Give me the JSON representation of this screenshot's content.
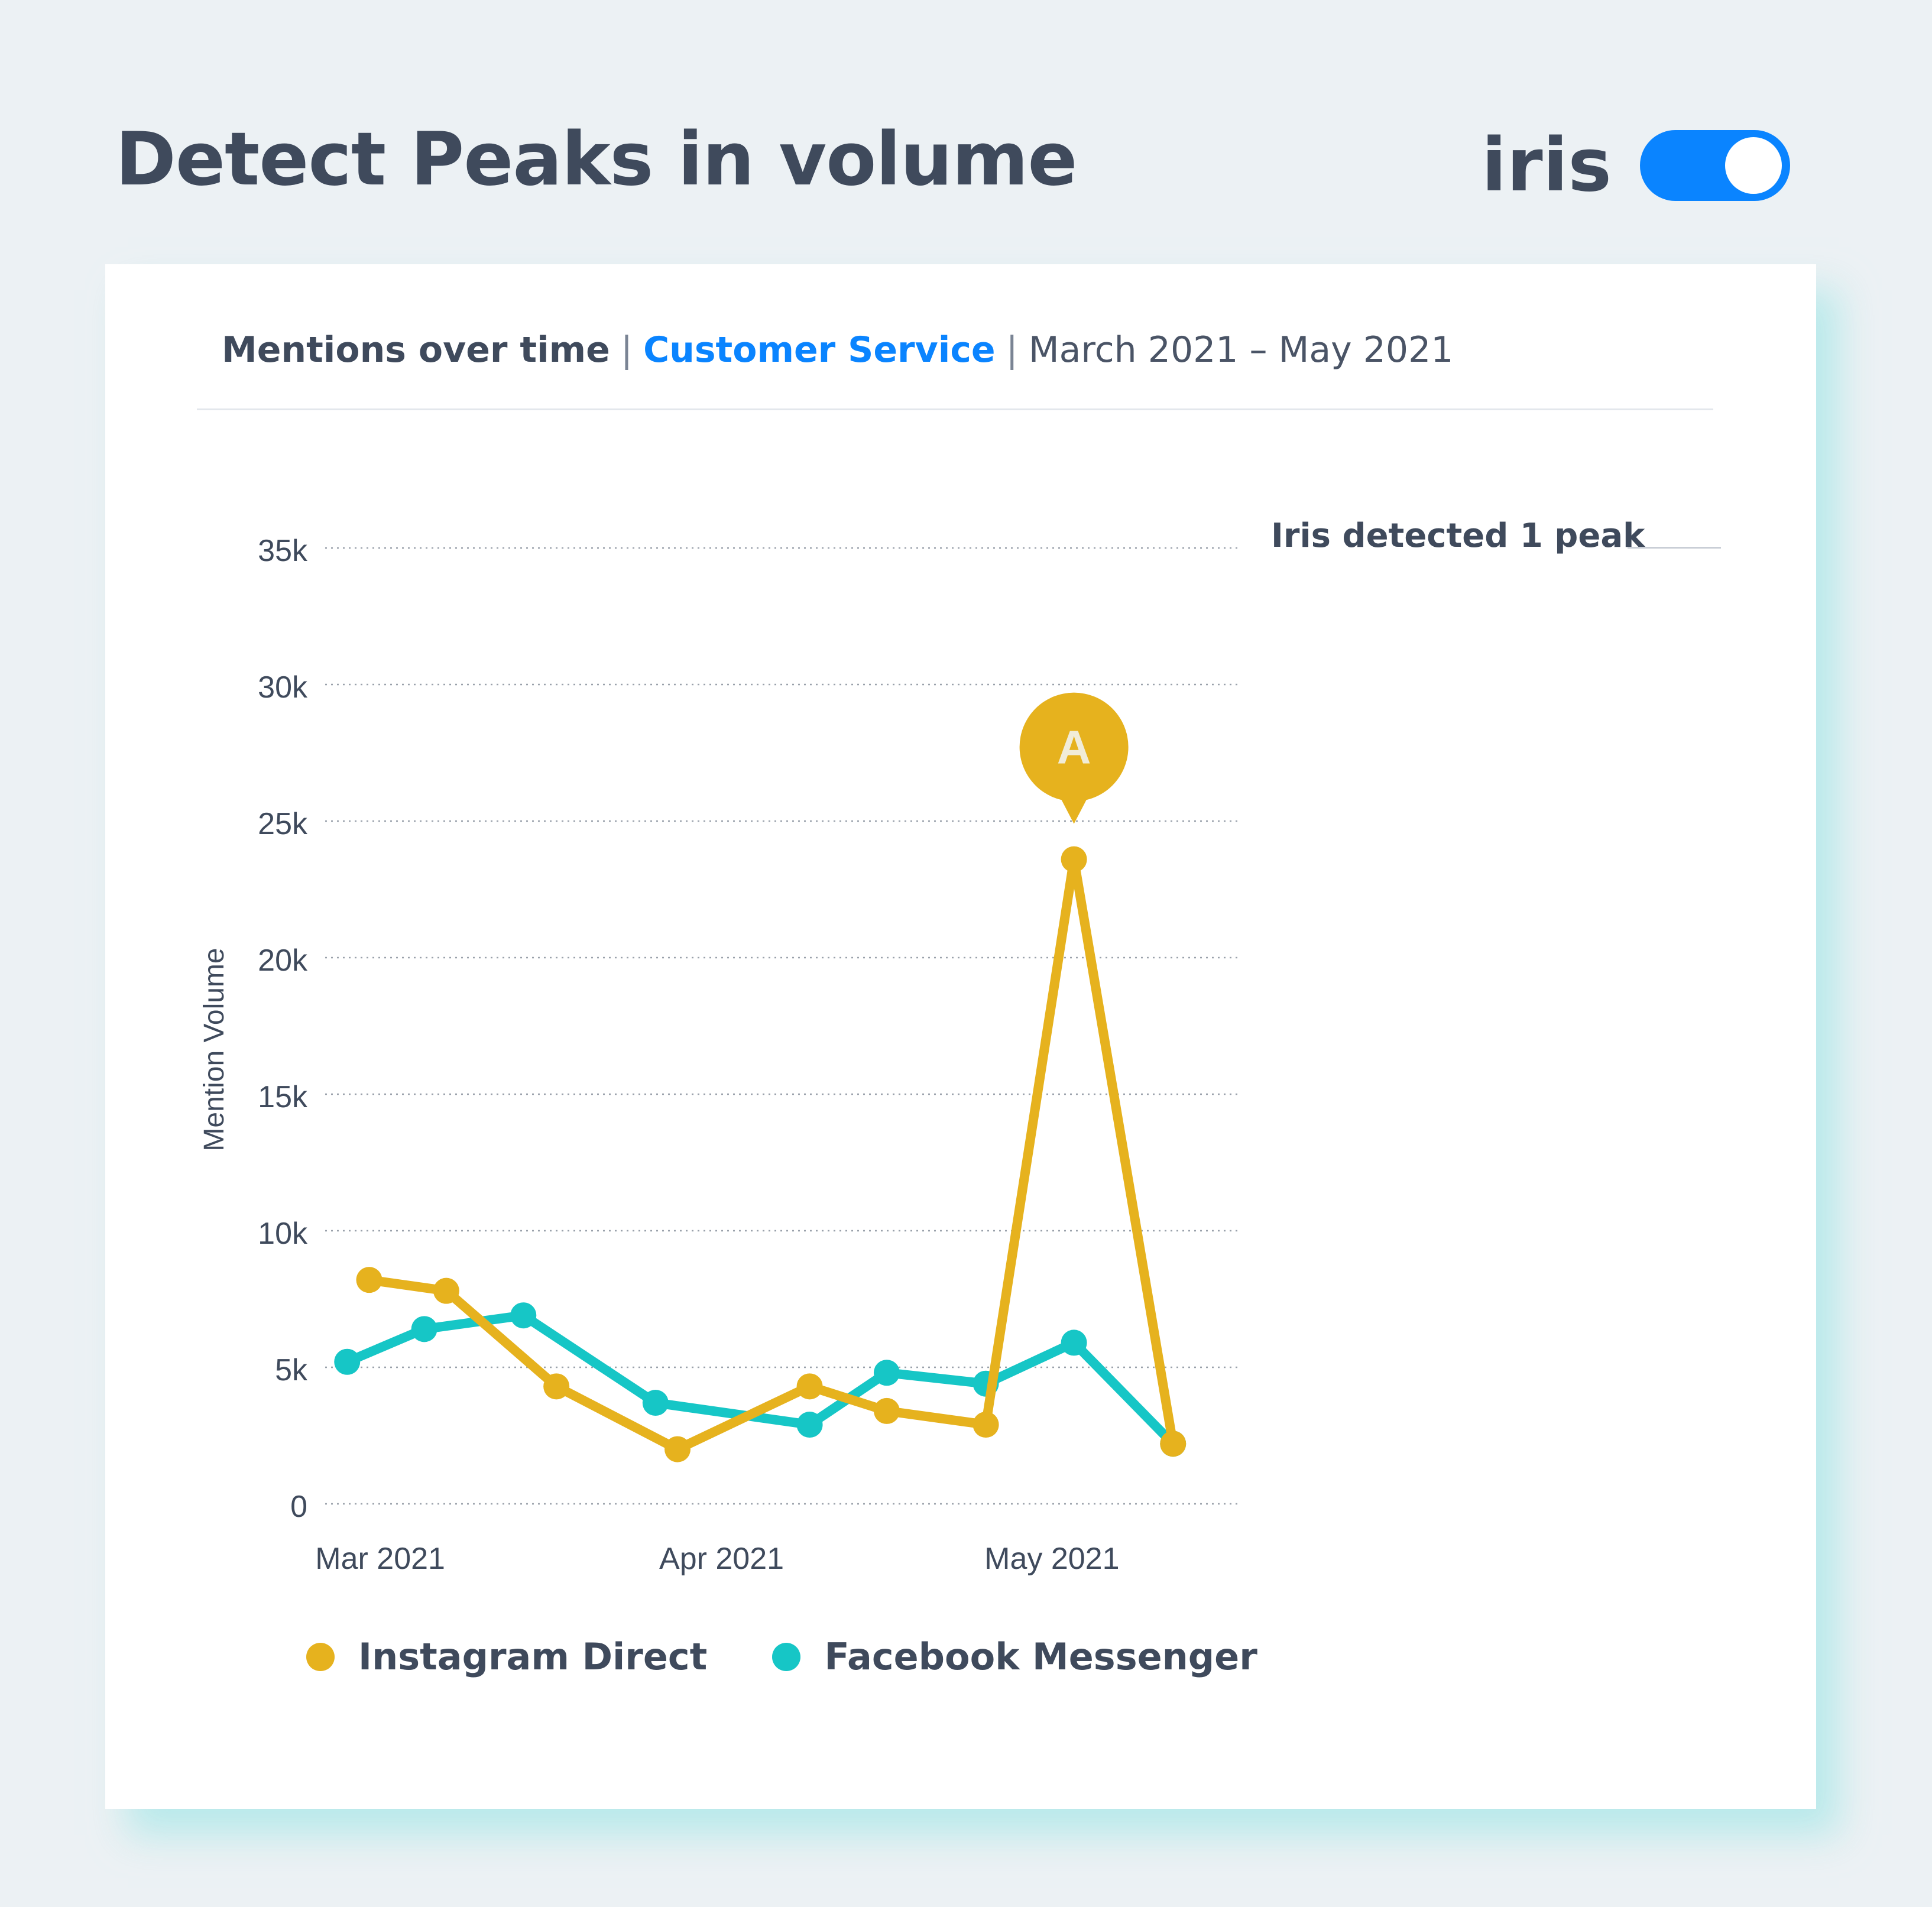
{
  "header": {
    "title": "Detect Peaks in volume",
    "brand": "iris",
    "toggle_on": true
  },
  "card": {
    "metric": "Mentions over time",
    "separator": "|",
    "topic": "Customer Service",
    "date_range": "March 2021 – May 2021",
    "peak_note": "Iris detected 1 peak"
  },
  "colors": {
    "background": "#ecf1f4",
    "accent": "#0a84ff",
    "instagram": "#e6b21e",
    "facebook": "#16c6c6",
    "text": "#3f4a5c"
  },
  "chart_data": {
    "type": "line",
    "ylabel": "Mention Volume",
    "ylim": [
      0,
      35000
    ],
    "yticks": [
      0,
      5000,
      10000,
      15000,
      20000,
      25000,
      30000,
      35000
    ],
    "ytick_labels": [
      "0",
      "5k",
      "10k",
      "15k",
      "20k",
      "25k",
      "30k",
      "35k"
    ],
    "xlim": [
      "2021-02-24",
      "2021-05-18"
    ],
    "xticks": [
      "2021-03-01",
      "2021-04-01",
      "2021-05-01"
    ],
    "xtick_labels": [
      "Mar 2021",
      "Apr 2021",
      "May 2021"
    ],
    "grid": true,
    "legend_position": "bottom",
    "series": [
      {
        "name": "Instagram Direct",
        "color": "#e6b21e",
        "points": [
          {
            "x": "2021-02-28",
            "y": 8200
          },
          {
            "x": "2021-03-07",
            "y": 7800
          },
          {
            "x": "2021-03-17",
            "y": 4300
          },
          {
            "x": "2021-03-28",
            "y": 2000
          },
          {
            "x": "2021-04-09",
            "y": 4300
          },
          {
            "x": "2021-04-16",
            "y": 3400
          },
          {
            "x": "2021-04-25",
            "y": 2900
          },
          {
            "x": "2021-05-03",
            "y": 23600
          },
          {
            "x": "2021-05-12",
            "y": 2200
          }
        ]
      },
      {
        "name": "Facebook Messenger",
        "color": "#16c6c6",
        "points": [
          {
            "x": "2021-02-26",
            "y": 5200
          },
          {
            "x": "2021-03-05",
            "y": 6400
          },
          {
            "x": "2021-03-14",
            "y": 6900
          },
          {
            "x": "2021-03-26",
            "y": 3700
          },
          {
            "x": "2021-04-09",
            "y": 2900
          },
          {
            "x": "2021-04-16",
            "y": 4800
          },
          {
            "x": "2021-04-25",
            "y": 4400
          },
          {
            "x": "2021-05-03",
            "y": 5900
          },
          {
            "x": "2021-05-12",
            "y": 2200
          }
        ]
      }
    ],
    "annotations": [
      {
        "label": "A",
        "series": "Instagram Direct",
        "x": "2021-05-03",
        "y": 23600
      }
    ]
  }
}
